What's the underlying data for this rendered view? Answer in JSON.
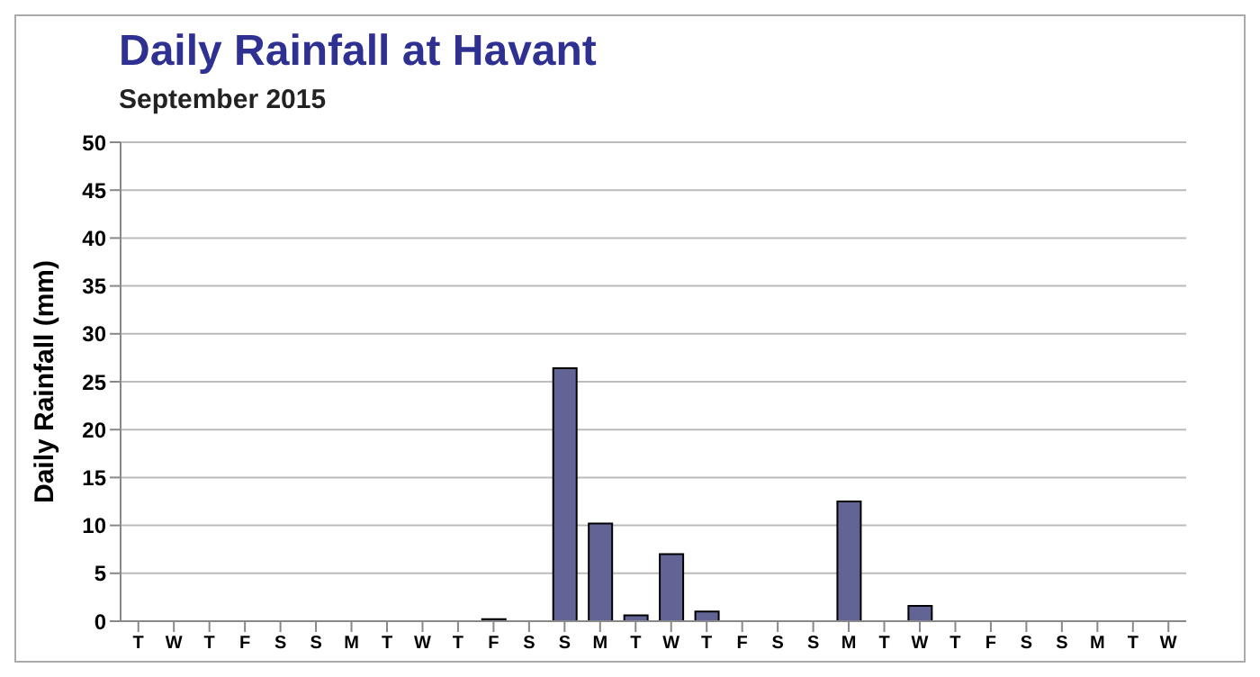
{
  "chart_data": {
    "type": "bar",
    "title": "Daily Rainfall at Havant",
    "subtitle": "September 2015",
    "ylabel": "Daily Rainfall (mm)",
    "categories": [
      "T",
      "W",
      "T",
      "F",
      "S",
      "S",
      "M",
      "T",
      "W",
      "T",
      "F",
      "S",
      "S",
      "M",
      "T",
      "W",
      "T",
      "F",
      "S",
      "S",
      "M",
      "T",
      "W",
      "T",
      "F",
      "S",
      "S",
      "M",
      "T",
      "W"
    ],
    "values": [
      0,
      0,
      0,
      0,
      0,
      0,
      0,
      0,
      0,
      0,
      0.2,
      0,
      26.4,
      10.2,
      0.6,
      7,
      1,
      0,
      0,
      0,
      12.5,
      0,
      1.6,
      0,
      0,
      0,
      0,
      0,
      0,
      0
    ],
    "color": "#636496",
    "ylim": [
      0,
      50
    ],
    "yticks": [
      0,
      5,
      10,
      15,
      20,
      25,
      30,
      35,
      40,
      45,
      50
    ],
    "grid": "y"
  }
}
